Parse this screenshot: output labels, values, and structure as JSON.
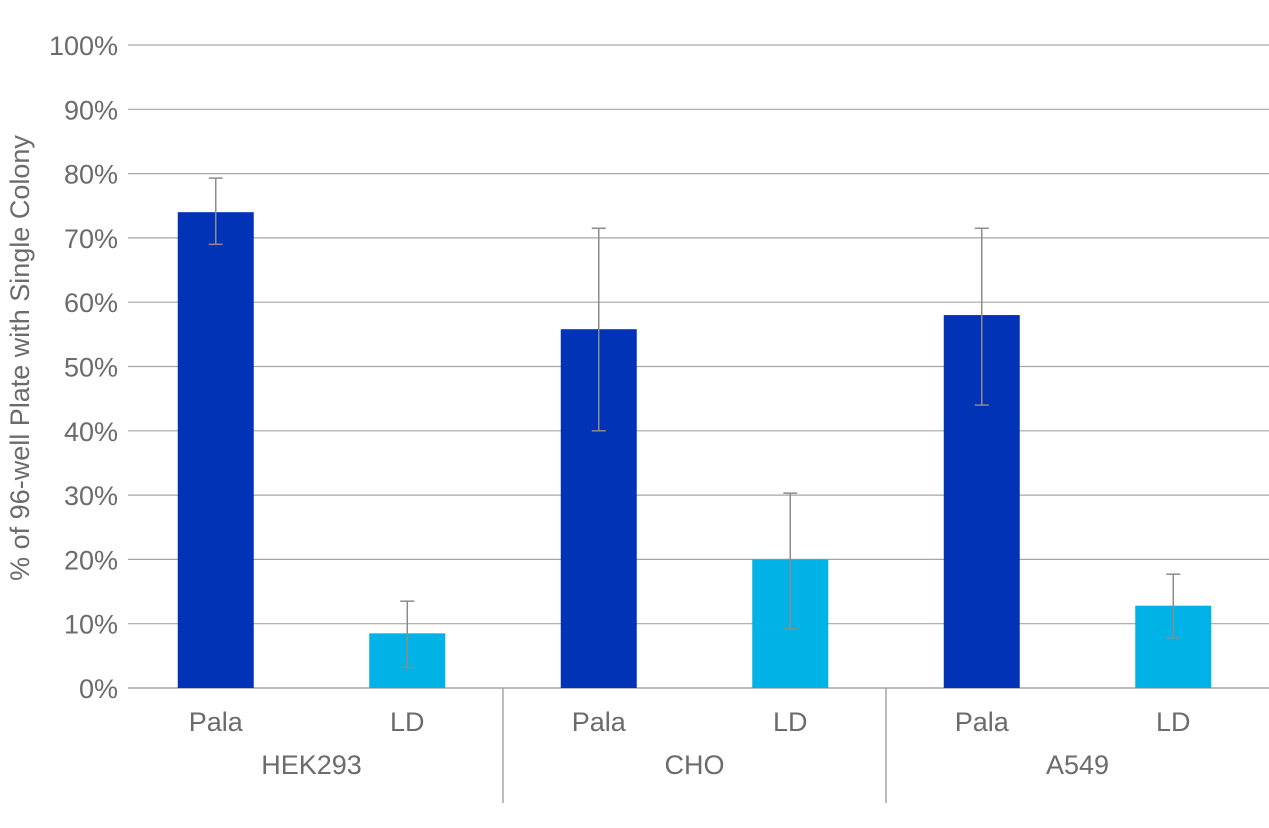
{
  "chart_data": {
    "type": "bar",
    "title": "",
    "xlabel": "",
    "ylabel": "% of 96-well Plate with Single Colony",
    "ylim": [
      0,
      100
    ],
    "y_ticks": [
      "0%",
      "10%",
      "20%",
      "30%",
      "40%",
      "50%",
      "60%",
      "70%",
      "80%",
      "90%",
      "100%"
    ],
    "y_tick_values": [
      0,
      10,
      20,
      30,
      40,
      50,
      60,
      70,
      80,
      90,
      100
    ],
    "grid": true,
    "groups": [
      {
        "label": "HEK293",
        "bars": [
          {
            "category": "Pala",
            "value": 74,
            "error_low": 69,
            "error_high": 79.3,
            "color": "#0033b5"
          },
          {
            "category": "LD",
            "value": 8.5,
            "error_low": 3.2,
            "error_high": 13.5,
            "color": "#00b2e6"
          }
        ]
      },
      {
        "label": "CHO",
        "bars": [
          {
            "category": "Pala",
            "value": 55.8,
            "error_low": 40,
            "error_high": 71.5,
            "color": "#0033b5"
          },
          {
            "category": "LD",
            "value": 20,
            "error_low": 9.2,
            "error_high": 30.3,
            "color": "#00b2e6"
          }
        ]
      },
      {
        "label": "A549",
        "bars": [
          {
            "category": "Pala",
            "value": 58,
            "error_low": 44,
            "error_high": 71.5,
            "color": "#0033b5"
          },
          {
            "category": "LD",
            "value": 12.8,
            "error_low": 7.8,
            "error_high": 17.7,
            "color": "#00b2e6"
          }
        ]
      }
    ],
    "colors": {
      "grid": "#a6a6a6",
      "axis": "#a6a6a6",
      "error_bar": "#8c8c8c",
      "text": "#6b6b6b"
    }
  }
}
